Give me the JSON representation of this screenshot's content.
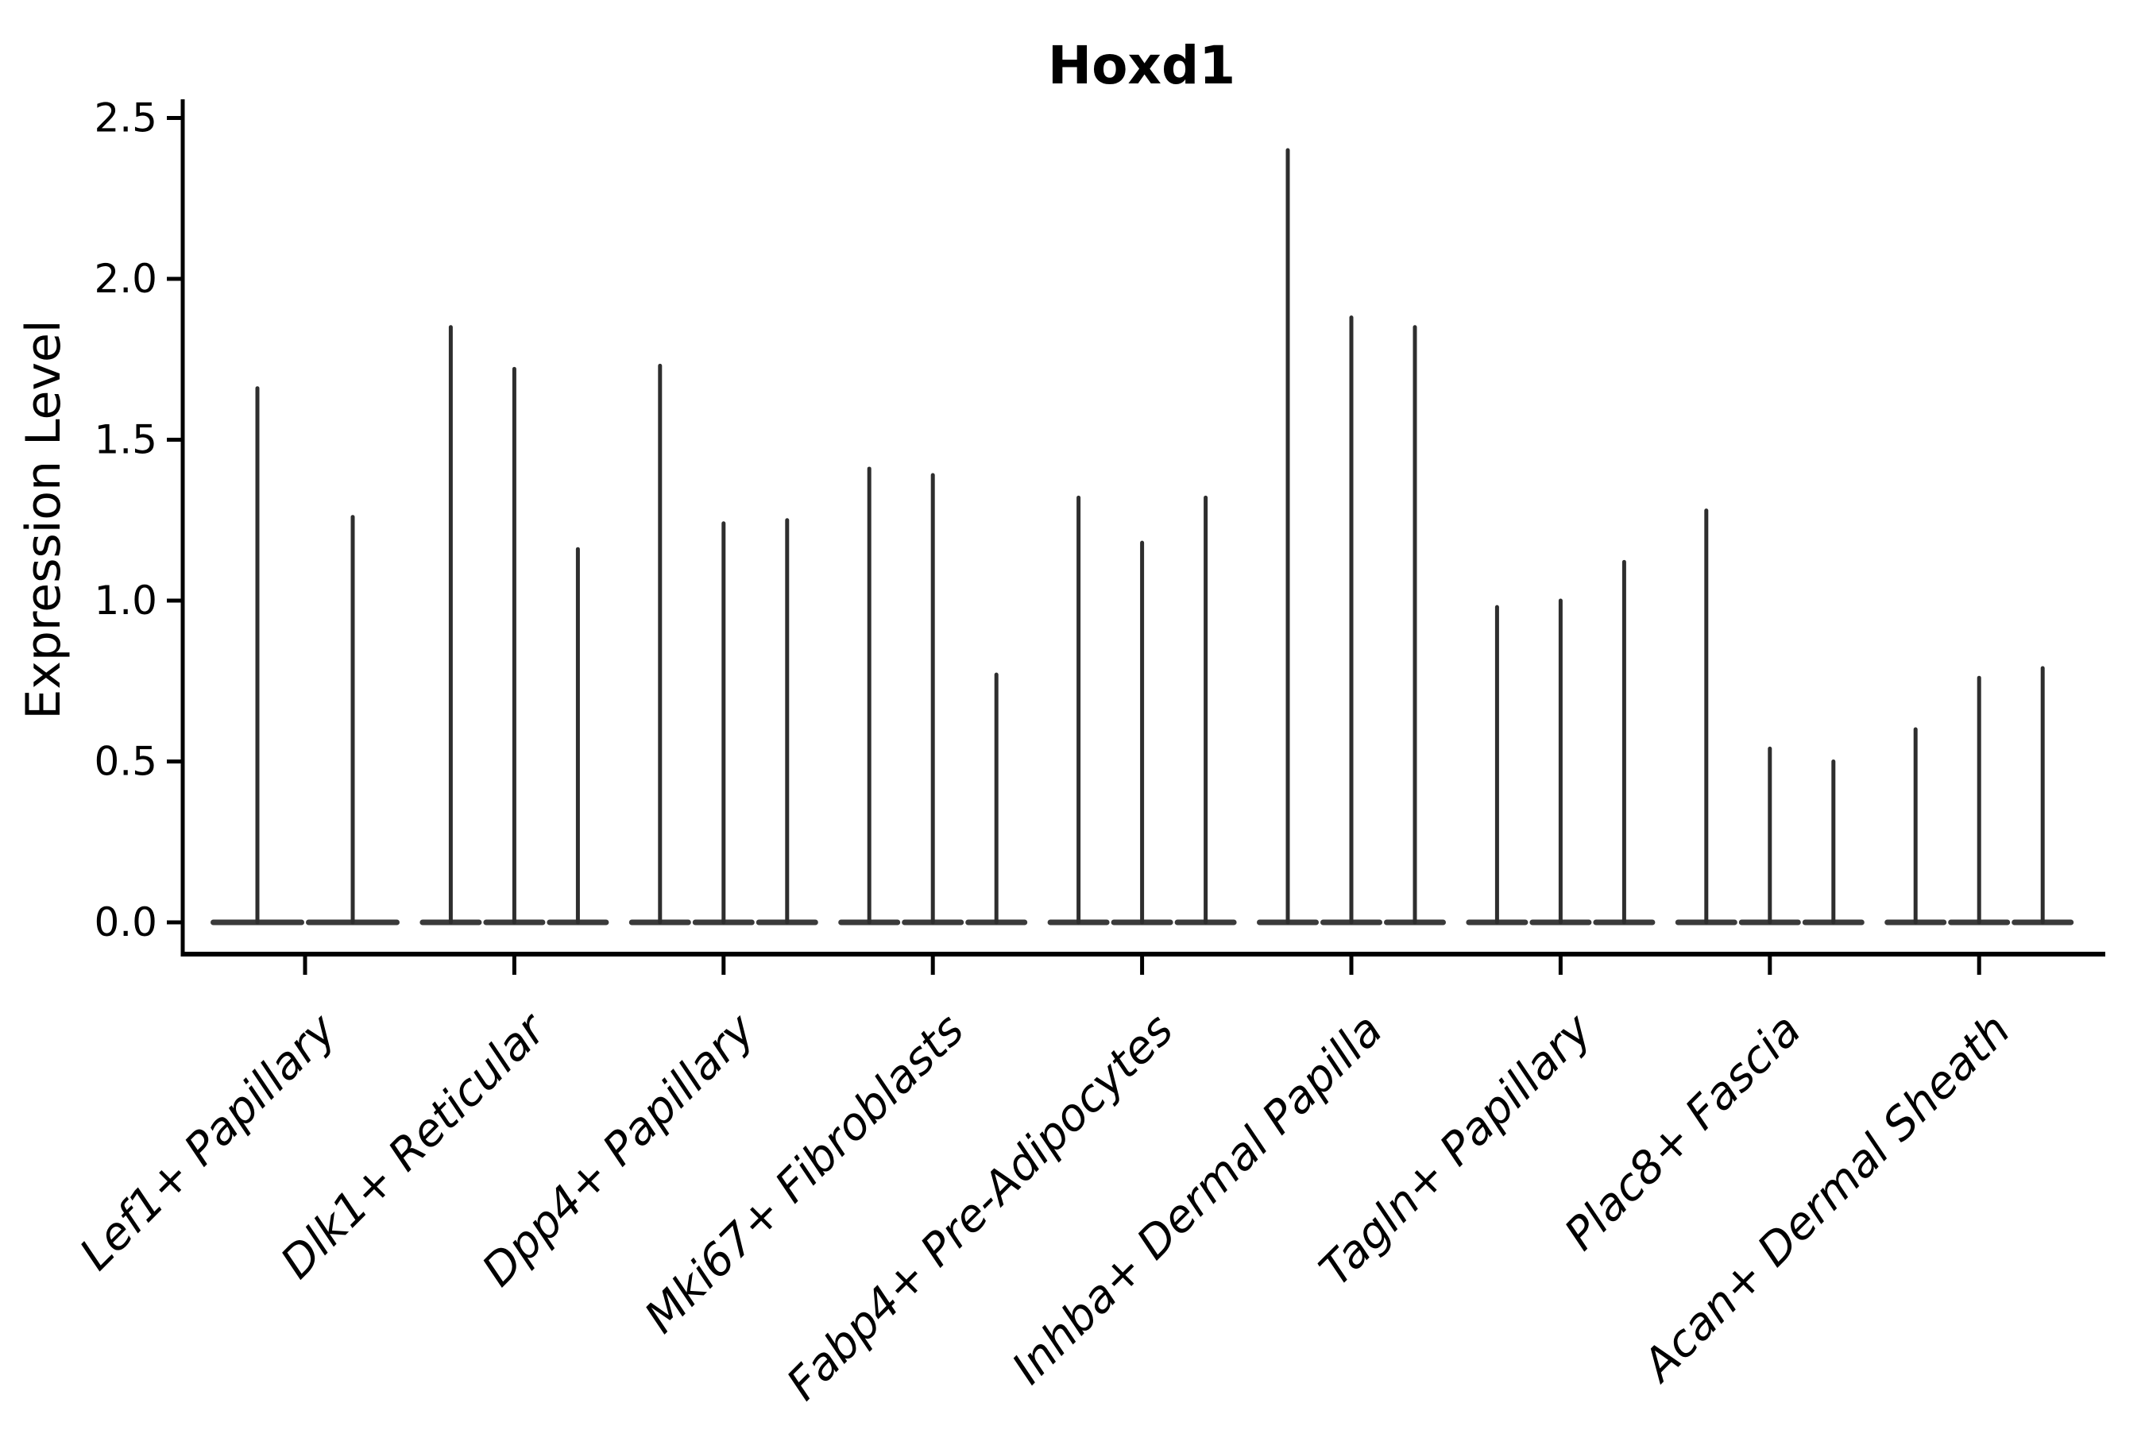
{
  "figure": {
    "title": "Hoxd1",
    "background_color": "#ffffff"
  },
  "chart_data": {
    "type": "violin",
    "title": "Hoxd1",
    "xlabel": "",
    "ylabel": "Expression Level",
    "ylim": [
      -0.12,
      2.55
    ],
    "yticks": [
      0.0,
      0.5,
      1.0,
      1.5,
      2.0,
      2.5
    ],
    "ytick_labels": [
      "0.0",
      "0.5",
      "1.0",
      "1.5",
      "2.0",
      "2.5"
    ],
    "grid": false,
    "legend_position": "none",
    "style_note": "Seurat-style stacked violin plot; each violin is an extremely thin spike: wide flat density lens at expression 0 plus a narrow vertical spike up to the max expression value",
    "colors": {
      "violin": "#2e2e2e",
      "violin_base": "#3a3a3a",
      "axis": "#000000",
      "text": "#000000"
    },
    "categories": [
      "Lef1+ Papillary",
      "Dlk1+ Reticular",
      "Dpp4+ Papillary",
      "Mki67+ Fibroblasts",
      "Fabp4+ Pre-Adipocytes",
      "Inhba+ Dermal Papilla",
      "Tagln+ Papillary",
      "Plac8+ Fascia",
      "Acan+ Dermal Sheath"
    ],
    "groups": [
      {
        "category": "Lef1+ Papillary",
        "violin_maxima": [
          1.66,
          1.26
        ]
      },
      {
        "category": "Dlk1+ Reticular",
        "violin_maxima": [
          1.85,
          1.72,
          1.16
        ]
      },
      {
        "category": "Dpp4+ Papillary",
        "violin_maxima": [
          1.73,
          1.24,
          1.25
        ]
      },
      {
        "category": "Mki67+ Fibroblasts",
        "violin_maxima": [
          1.41,
          1.39,
          0.77
        ]
      },
      {
        "category": "Fabp4+ Pre-Adipocytes",
        "violin_maxima": [
          1.32,
          1.18,
          1.32
        ]
      },
      {
        "category": "Inhba+ Dermal Papilla",
        "violin_maxima": [
          2.4,
          1.88,
          1.85
        ]
      },
      {
        "category": "Tagln+ Papillary",
        "violin_maxima": [
          0.98,
          1.0,
          1.12
        ]
      },
      {
        "category": "Plac8+ Fascia",
        "violin_maxima": [
          1.28,
          0.54,
          0.5
        ]
      },
      {
        "category": "Acan+ Dermal Sheath",
        "violin_maxima": [
          0.6,
          0.76,
          0.79
        ]
      }
    ]
  }
}
